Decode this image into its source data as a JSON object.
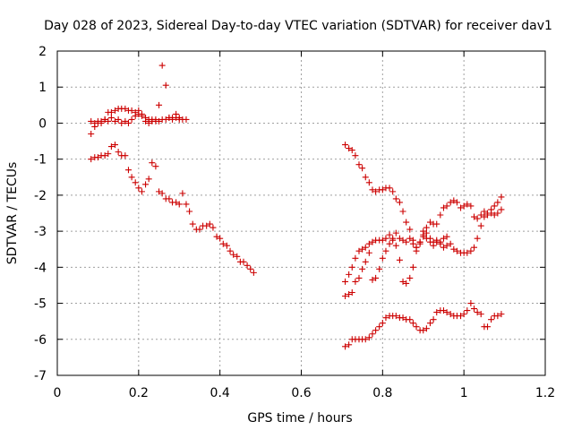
{
  "chart_data": {
    "type": "scatter",
    "title": "Day 028 of 2023, Sidereal Day-to-day VTEC variation (SDTVAR) for receiver dav1",
    "xlabel": "GPS time / hours",
    "ylabel": "SDTVAR / TECUs",
    "xlim": [
      0,
      1.2
    ],
    "ylim": [
      -7,
      2
    ],
    "xticks": [
      "0",
      "0.2",
      "0.4",
      "0.6",
      "0.8",
      "1",
      "1.2"
    ],
    "yticks": [
      "-7",
      "-6",
      "-5",
      "-4",
      "-3",
      "-2",
      "-1",
      "0",
      "1",
      "2"
    ],
    "xtick_values": [
      0,
      0.2,
      0.4,
      0.6,
      0.8,
      1.0,
      1.2
    ],
    "ytick_values": [
      -7,
      -6,
      -5,
      -4,
      -3,
      -2,
      -1,
      0,
      1,
      2
    ],
    "grid": true,
    "marker": "+",
    "color": "#cc0000",
    "series": [
      {
        "points": [
          [
            0.083,
            -0.3
          ],
          [
            0.083,
            -1.0
          ],
          [
            0.092,
            -0.95
          ],
          [
            0.1,
            -0.95
          ],
          [
            0.108,
            -0.9
          ],
          [
            0.117,
            -0.9
          ],
          [
            0.125,
            -0.85
          ],
          [
            0.133,
            -0.65
          ],
          [
            0.142,
            -0.6
          ],
          [
            0.15,
            -0.8
          ],
          [
            0.158,
            -0.9
          ],
          [
            0.167,
            -0.9
          ],
          [
            0.175,
            -1.3
          ],
          [
            0.183,
            -1.5
          ],
          [
            0.192,
            -1.65
          ],
          [
            0.2,
            -1.8
          ],
          [
            0.208,
            -1.9
          ],
          [
            0.217,
            -1.7
          ],
          [
            0.225,
            -1.55
          ],
          [
            0.233,
            -1.1
          ],
          [
            0.242,
            -1.2
          ],
          [
            0.25,
            -1.9
          ],
          [
            0.258,
            -1.95
          ],
          [
            0.267,
            -2.1
          ],
          [
            0.275,
            -2.1
          ],
          [
            0.283,
            -2.2
          ],
          [
            0.292,
            -2.2
          ],
          [
            0.3,
            -2.25
          ],
          [
            0.308,
            -1.95
          ],
          [
            0.317,
            -2.25
          ],
          [
            0.325,
            -2.45
          ],
          [
            0.333,
            -2.8
          ],
          [
            0.342,
            -2.95
          ],
          [
            0.35,
            -2.95
          ],
          [
            0.358,
            -2.85
          ],
          [
            0.367,
            -2.85
          ],
          [
            0.375,
            -2.8
          ],
          [
            0.383,
            -2.9
          ],
          [
            0.392,
            -3.15
          ],
          [
            0.4,
            -3.2
          ],
          [
            0.408,
            -3.35
          ],
          [
            0.417,
            -3.4
          ],
          [
            0.425,
            -3.55
          ],
          [
            0.433,
            -3.65
          ],
          [
            0.442,
            -3.7
          ],
          [
            0.45,
            -3.85
          ],
          [
            0.458,
            -3.85
          ],
          [
            0.467,
            -3.95
          ],
          [
            0.475,
            -4.05
          ],
          [
            0.483,
            -4.15
          ],
          [
            0.083,
            0.05
          ],
          [
            0.092,
            0.0
          ],
          [
            0.1,
            0.05
          ],
          [
            0.108,
            0.05
          ],
          [
            0.117,
            0.1
          ],
          [
            0.125,
            0.3
          ],
          [
            0.133,
            0.3
          ],
          [
            0.142,
            0.35
          ],
          [
            0.15,
            0.4
          ],
          [
            0.158,
            0.4
          ],
          [
            0.167,
            0.4
          ],
          [
            0.175,
            0.35
          ],
          [
            0.183,
            0.35
          ],
          [
            0.192,
            0.3
          ],
          [
            0.2,
            0.25
          ],
          [
            0.208,
            0.25
          ],
          [
            0.217,
            0.15
          ],
          [
            0.225,
            0.1
          ],
          [
            0.233,
            0.05
          ],
          [
            0.242,
            0.05
          ],
          [
            0.25,
            0.05
          ],
          [
            0.258,
            0.1
          ],
          [
            0.267,
            0.1
          ],
          [
            0.275,
            0.15
          ],
          [
            0.283,
            0.15
          ],
          [
            0.292,
            0.25
          ],
          [
            0.3,
            0.15
          ],
          [
            0.308,
            0.1
          ],
          [
            0.317,
            0.1
          ],
          [
            0.092,
            -0.1
          ],
          [
            0.1,
            0.0
          ],
          [
            0.108,
            0.0
          ],
          [
            0.117,
            0.1
          ],
          [
            0.125,
            0.05
          ],
          [
            0.133,
            0.15
          ],
          [
            0.142,
            0.05
          ],
          [
            0.15,
            0.1
          ],
          [
            0.158,
            0.0
          ],
          [
            0.167,
            0.05
          ],
          [
            0.175,
            0.0
          ],
          [
            0.183,
            0.1
          ],
          [
            0.192,
            0.2
          ],
          [
            0.2,
            0.35
          ],
          [
            0.208,
            0.2
          ],
          [
            0.217,
            0.05
          ],
          [
            0.225,
            0.0
          ],
          [
            0.233,
            0.1
          ],
          [
            0.242,
            0.1
          ],
          [
            0.25,
            0.5
          ],
          [
            0.258,
            1.6
          ],
          [
            0.267,
            1.05
          ],
          [
            0.275,
            0.15
          ],
          [
            0.283,
            0.1
          ],
          [
            0.292,
            0.15
          ],
          [
            0.3,
            0.1
          ],
          [
            0.708,
            -0.6
          ],
          [
            0.717,
            -0.7
          ],
          [
            0.725,
            -0.75
          ],
          [
            0.733,
            -0.9
          ],
          [
            0.742,
            -1.15
          ],
          [
            0.75,
            -1.25
          ],
          [
            0.758,
            -1.5
          ],
          [
            0.767,
            -1.65
          ],
          [
            0.775,
            -1.85
          ],
          [
            0.783,
            -1.9
          ],
          [
            0.792,
            -1.85
          ],
          [
            0.8,
            -1.85
          ],
          [
            0.808,
            -1.8
          ],
          [
            0.817,
            -1.8
          ],
          [
            0.825,
            -1.9
          ],
          [
            0.833,
            -2.1
          ],
          [
            0.842,
            -2.2
          ],
          [
            0.85,
            -2.45
          ],
          [
            0.858,
            -2.75
          ],
          [
            0.867,
            -2.95
          ],
          [
            0.875,
            -3.25
          ],
          [
            0.883,
            -3.45
          ],
          [
            0.892,
            -3.3
          ],
          [
            0.9,
            -3.0
          ],
          [
            0.908,
            -3.05
          ],
          [
            0.917,
            -3.2
          ],
          [
            0.925,
            -3.3
          ],
          [
            0.933,
            -3.25
          ],
          [
            0.942,
            -3.3
          ],
          [
            0.95,
            -3.45
          ],
          [
            0.958,
            -3.4
          ],
          [
            0.967,
            -3.35
          ],
          [
            0.975,
            -3.5
          ],
          [
            0.983,
            -3.55
          ],
          [
            0.992,
            -3.6
          ],
          [
            1.0,
            -3.6
          ],
          [
            1.008,
            -3.6
          ],
          [
            1.017,
            -3.55
          ],
          [
            1.025,
            -3.45
          ],
          [
            1.033,
            -3.2
          ],
          [
            1.042,
            -2.85
          ],
          [
            1.05,
            -2.6
          ],
          [
            1.058,
            -2.55
          ],
          [
            1.067,
            -2.4
          ],
          [
            1.075,
            -2.3
          ],
          [
            1.083,
            -2.2
          ],
          [
            1.092,
            -2.05
          ],
          [
            0.708,
            -4.4
          ],
          [
            0.717,
            -4.2
          ],
          [
            0.725,
            -4.0
          ],
          [
            0.733,
            -3.75
          ],
          [
            0.742,
            -3.55
          ],
          [
            0.75,
            -3.5
          ],
          [
            0.758,
            -3.45
          ],
          [
            0.767,
            -3.35
          ],
          [
            0.775,
            -3.3
          ],
          [
            0.783,
            -3.25
          ],
          [
            0.792,
            -3.25
          ],
          [
            0.8,
            -3.25
          ],
          [
            0.808,
            -3.2
          ],
          [
            0.817,
            -3.1
          ],
          [
            0.825,
            -3.25
          ],
          [
            0.833,
            -3.05
          ],
          [
            0.842,
            -3.2
          ],
          [
            0.85,
            -3.25
          ],
          [
            0.858,
            -3.3
          ],
          [
            0.867,
            -3.2
          ],
          [
            0.875,
            -3.35
          ],
          [
            0.883,
            -3.45
          ],
          [
            0.892,
            -3.35
          ],
          [
            0.9,
            -3.15
          ],
          [
            0.908,
            -2.9
          ],
          [
            0.917,
            -2.75
          ],
          [
            0.925,
            -2.8
          ],
          [
            0.933,
            -2.8
          ],
          [
            0.942,
            -2.55
          ],
          [
            0.95,
            -2.35
          ],
          [
            0.958,
            -2.3
          ],
          [
            0.967,
            -2.2
          ],
          [
            0.975,
            -2.15
          ],
          [
            0.983,
            -2.2
          ],
          [
            0.992,
            -2.35
          ],
          [
            1.0,
            -2.3
          ],
          [
            1.008,
            -2.25
          ],
          [
            1.017,
            -2.3
          ],
          [
            1.025,
            -2.6
          ],
          [
            1.033,
            -2.65
          ],
          [
            1.042,
            -2.55
          ],
          [
            1.05,
            -2.45
          ],
          [
            1.058,
            -2.5
          ],
          [
            1.067,
            -2.5
          ],
          [
            1.075,
            -2.55
          ],
          [
            1.083,
            -2.5
          ],
          [
            1.092,
            -2.4
          ],
          [
            0.708,
            -4.8
          ],
          [
            0.717,
            -4.75
          ],
          [
            0.725,
            -4.7
          ],
          [
            0.733,
            -4.4
          ],
          [
            0.742,
            -4.3
          ],
          [
            0.75,
            -4.05
          ],
          [
            0.758,
            -3.85
          ],
          [
            0.767,
            -3.6
          ],
          [
            0.775,
            -4.35
          ],
          [
            0.783,
            -4.3
          ],
          [
            0.792,
            -4.05
          ],
          [
            0.8,
            -3.75
          ],
          [
            0.808,
            -3.55
          ],
          [
            0.817,
            -3.35
          ],
          [
            0.825,
            -3.2
          ],
          [
            0.833,
            -3.4
          ],
          [
            0.842,
            -3.8
          ],
          [
            0.85,
            -4.4
          ],
          [
            0.858,
            -4.45
          ],
          [
            0.867,
            -4.3
          ],
          [
            0.875,
            -4.0
          ],
          [
            0.883,
            -3.55
          ],
          [
            0.892,
            -3.3
          ],
          [
            0.9,
            -3.1
          ],
          [
            0.908,
            -3.2
          ],
          [
            0.917,
            -3.3
          ],
          [
            0.925,
            -3.4
          ],
          [
            0.933,
            -3.3
          ],
          [
            0.942,
            -3.35
          ],
          [
            0.95,
            -3.2
          ],
          [
            0.958,
            -3.15
          ],
          [
            0.708,
            -6.2
          ],
          [
            0.717,
            -6.15
          ],
          [
            0.725,
            -6.0
          ],
          [
            0.733,
            -6.0
          ],
          [
            0.742,
            -6.0
          ],
          [
            0.75,
            -6.0
          ],
          [
            0.758,
            -6.0
          ],
          [
            0.767,
            -5.95
          ],
          [
            0.775,
            -5.85
          ],
          [
            0.783,
            -5.75
          ],
          [
            0.792,
            -5.65
          ],
          [
            0.8,
            -5.55
          ],
          [
            0.808,
            -5.4
          ],
          [
            0.817,
            -5.35
          ],
          [
            0.825,
            -5.35
          ],
          [
            0.833,
            -5.35
          ],
          [
            0.842,
            -5.4
          ],
          [
            0.85,
            -5.4
          ],
          [
            0.858,
            -5.45
          ],
          [
            0.867,
            -5.45
          ],
          [
            0.875,
            -5.55
          ],
          [
            0.883,
            -5.65
          ],
          [
            0.892,
            -5.75
          ],
          [
            0.9,
            -5.75
          ],
          [
            0.908,
            -5.7
          ],
          [
            0.917,
            -5.55
          ],
          [
            0.925,
            -5.45
          ],
          [
            0.933,
            -5.25
          ],
          [
            0.942,
            -5.2
          ],
          [
            0.95,
            -5.2
          ],
          [
            0.958,
            -5.25
          ],
          [
            0.967,
            -5.3
          ],
          [
            0.975,
            -5.35
          ],
          [
            0.983,
            -5.35
          ],
          [
            0.992,
            -5.35
          ],
          [
            1.0,
            -5.3
          ],
          [
            1.008,
            -5.2
          ],
          [
            1.017,
            -5.0
          ],
          [
            1.025,
            -5.15
          ],
          [
            1.033,
            -5.25
          ],
          [
            1.042,
            -5.3
          ],
          [
            1.05,
            -5.65
          ],
          [
            1.058,
            -5.65
          ],
          [
            1.067,
            -5.45
          ],
          [
            1.075,
            -5.35
          ],
          [
            1.083,
            -5.35
          ],
          [
            1.092,
            -5.3
          ]
        ]
      }
    ]
  }
}
